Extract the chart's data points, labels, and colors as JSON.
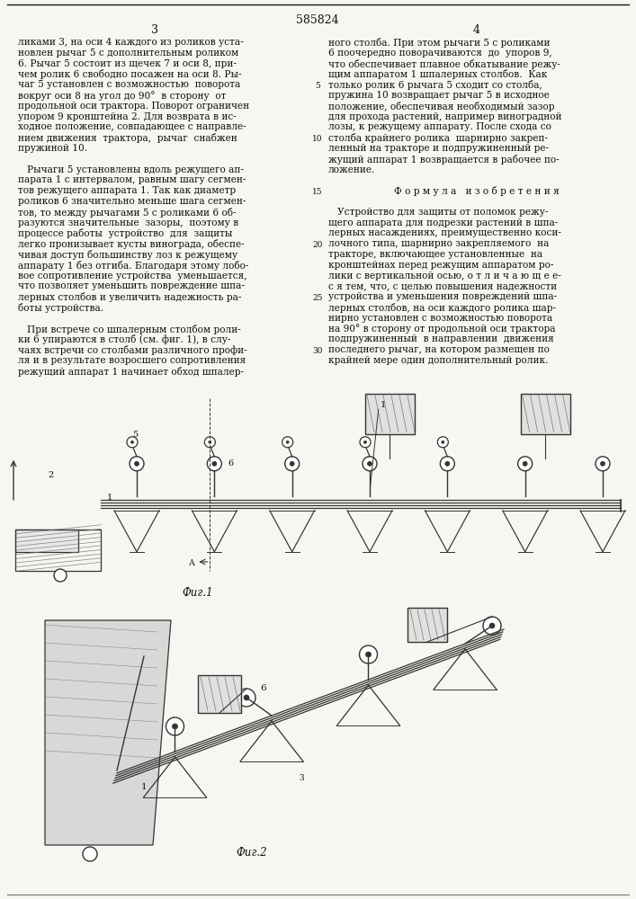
{
  "patent_number": "585824",
  "page_left": "3",
  "page_right": "4",
  "left_col_lines": [
    "ликами 3, на оси 4 каждого из роликов уста-",
    "новлен рычаг 5 с дополнительным роликом",
    "6. Рычаг 5 состоит из щечек 7 и оси 8, при-",
    "чем ролик 6 свободно посажен на оси 8. Ры-",
    "чаг 5 установлен с возможностью  поворота",
    "вокруг оси 8 на угол до 90°  в сторону  от",
    "продольной оси трактора. Поворот ограничен",
    "упором 9 кронштейна 2. Для возврата в ис-",
    "ходное положение, совпадающее с направле-",
    "нием движения  трактора,  рычаг  снабжен",
    "пружиной 10.",
    "",
    "   Рычаги 5 установлены вдоль режущего ап-",
    "парата 1 с интервалом, равным шагу сегмен-",
    "тов режущего аппарата 1. Так как диаметр",
    "роликов 6 значительно меньше шага сегмен-",
    "тов, то между рычагами 5 с роликами 6 об-",
    "разуются значительные  зазоры,  поэтому в",
    "процессе работы  устройство  для  защиты",
    "легко пронизывает кусты винограда, обеспе-",
    "чивая доступ большинству лоз к режущему",
    "аппарату 1 без отгиба. Благодаря этому лобо-",
    "вое сопротивление устройства  уменьшается,",
    "что позволяет уменьшить повреждение шпа-",
    "лерных столбов и увеличить надежность ра-",
    "боты устройства.",
    "",
    "   При встрече со шпалерным столбом роли-",
    "ки 6 упираются в столб (см. фиг. 1), в слу-",
    "чаях встречи со столбами различного профи-",
    "ля и в результате возросшего сопротивления",
    "режущий аппарат 1 начинает обход шпалер-"
  ],
  "right_col_lines": [
    "ного столба. При этом рычаги 5 с роликами",
    "6 поочередно поворачиваются  до  упоров 9,",
    "что обеспечивает плавное обкатывание режу-",
    "щим аппаратом 1 шпалерных столбов.  Как",
    "только ролик 6 рычага 5 сходит со столба,",
    "пружина 10 возвращает рычаг 5 в исходное",
    "положение, обеспечивая необходимый зазор",
    "для прохода растений, например виноградной",
    "лозы, к режущему аппарату. После схода со",
    "столба крайнего ролика  шарнирно закреп-",
    "ленный на тракторе и подпружиненный ре-",
    "жущий аппарат 1 возвращается в рабочее по-",
    "ложение.",
    "",
    "          Ф о р м у л а   и з о б р е т е н и я",
    "",
    "   Устройство для защиты от поломок режу-",
    "щего аппарата для подрезки растений в шпа-",
    "лерных насаждениях, преимущественно коси-",
    "лочного типа, шарнирно закрепляемого  на",
    "тракторе, включающее установленные  на",
    "кронштейнах перед режущим аппаратом ро-",
    "лики с вертикальной осью, о т л и ч а ю щ е е-",
    "с я тем, что, с целью повышения надежности",
    "устройства и уменьшения повреждений шпа-",
    "лерных столбов, на оси каждого ролика шар-",
    "нирно установлен с возможностью поворота",
    "на 90° в сторону от продольной оси трактора",
    "подпружиненный  в направлении  движения",
    "последнего рычаг, на котором размещен по",
    "крайней мере один дополнительный ролик."
  ],
  "line_num_rows": [
    4,
    9,
    14,
    19,
    24,
    29
  ],
  "line_nums": [
    5,
    10,
    15,
    20,
    25,
    30
  ],
  "fig1_label": "Фиг.1",
  "fig2_label": "Фиг.2",
  "bg_color": "#f8f6f0",
  "text_color": "#111111",
  "line_color": "#1a1a1a",
  "draw_color": "#333333"
}
